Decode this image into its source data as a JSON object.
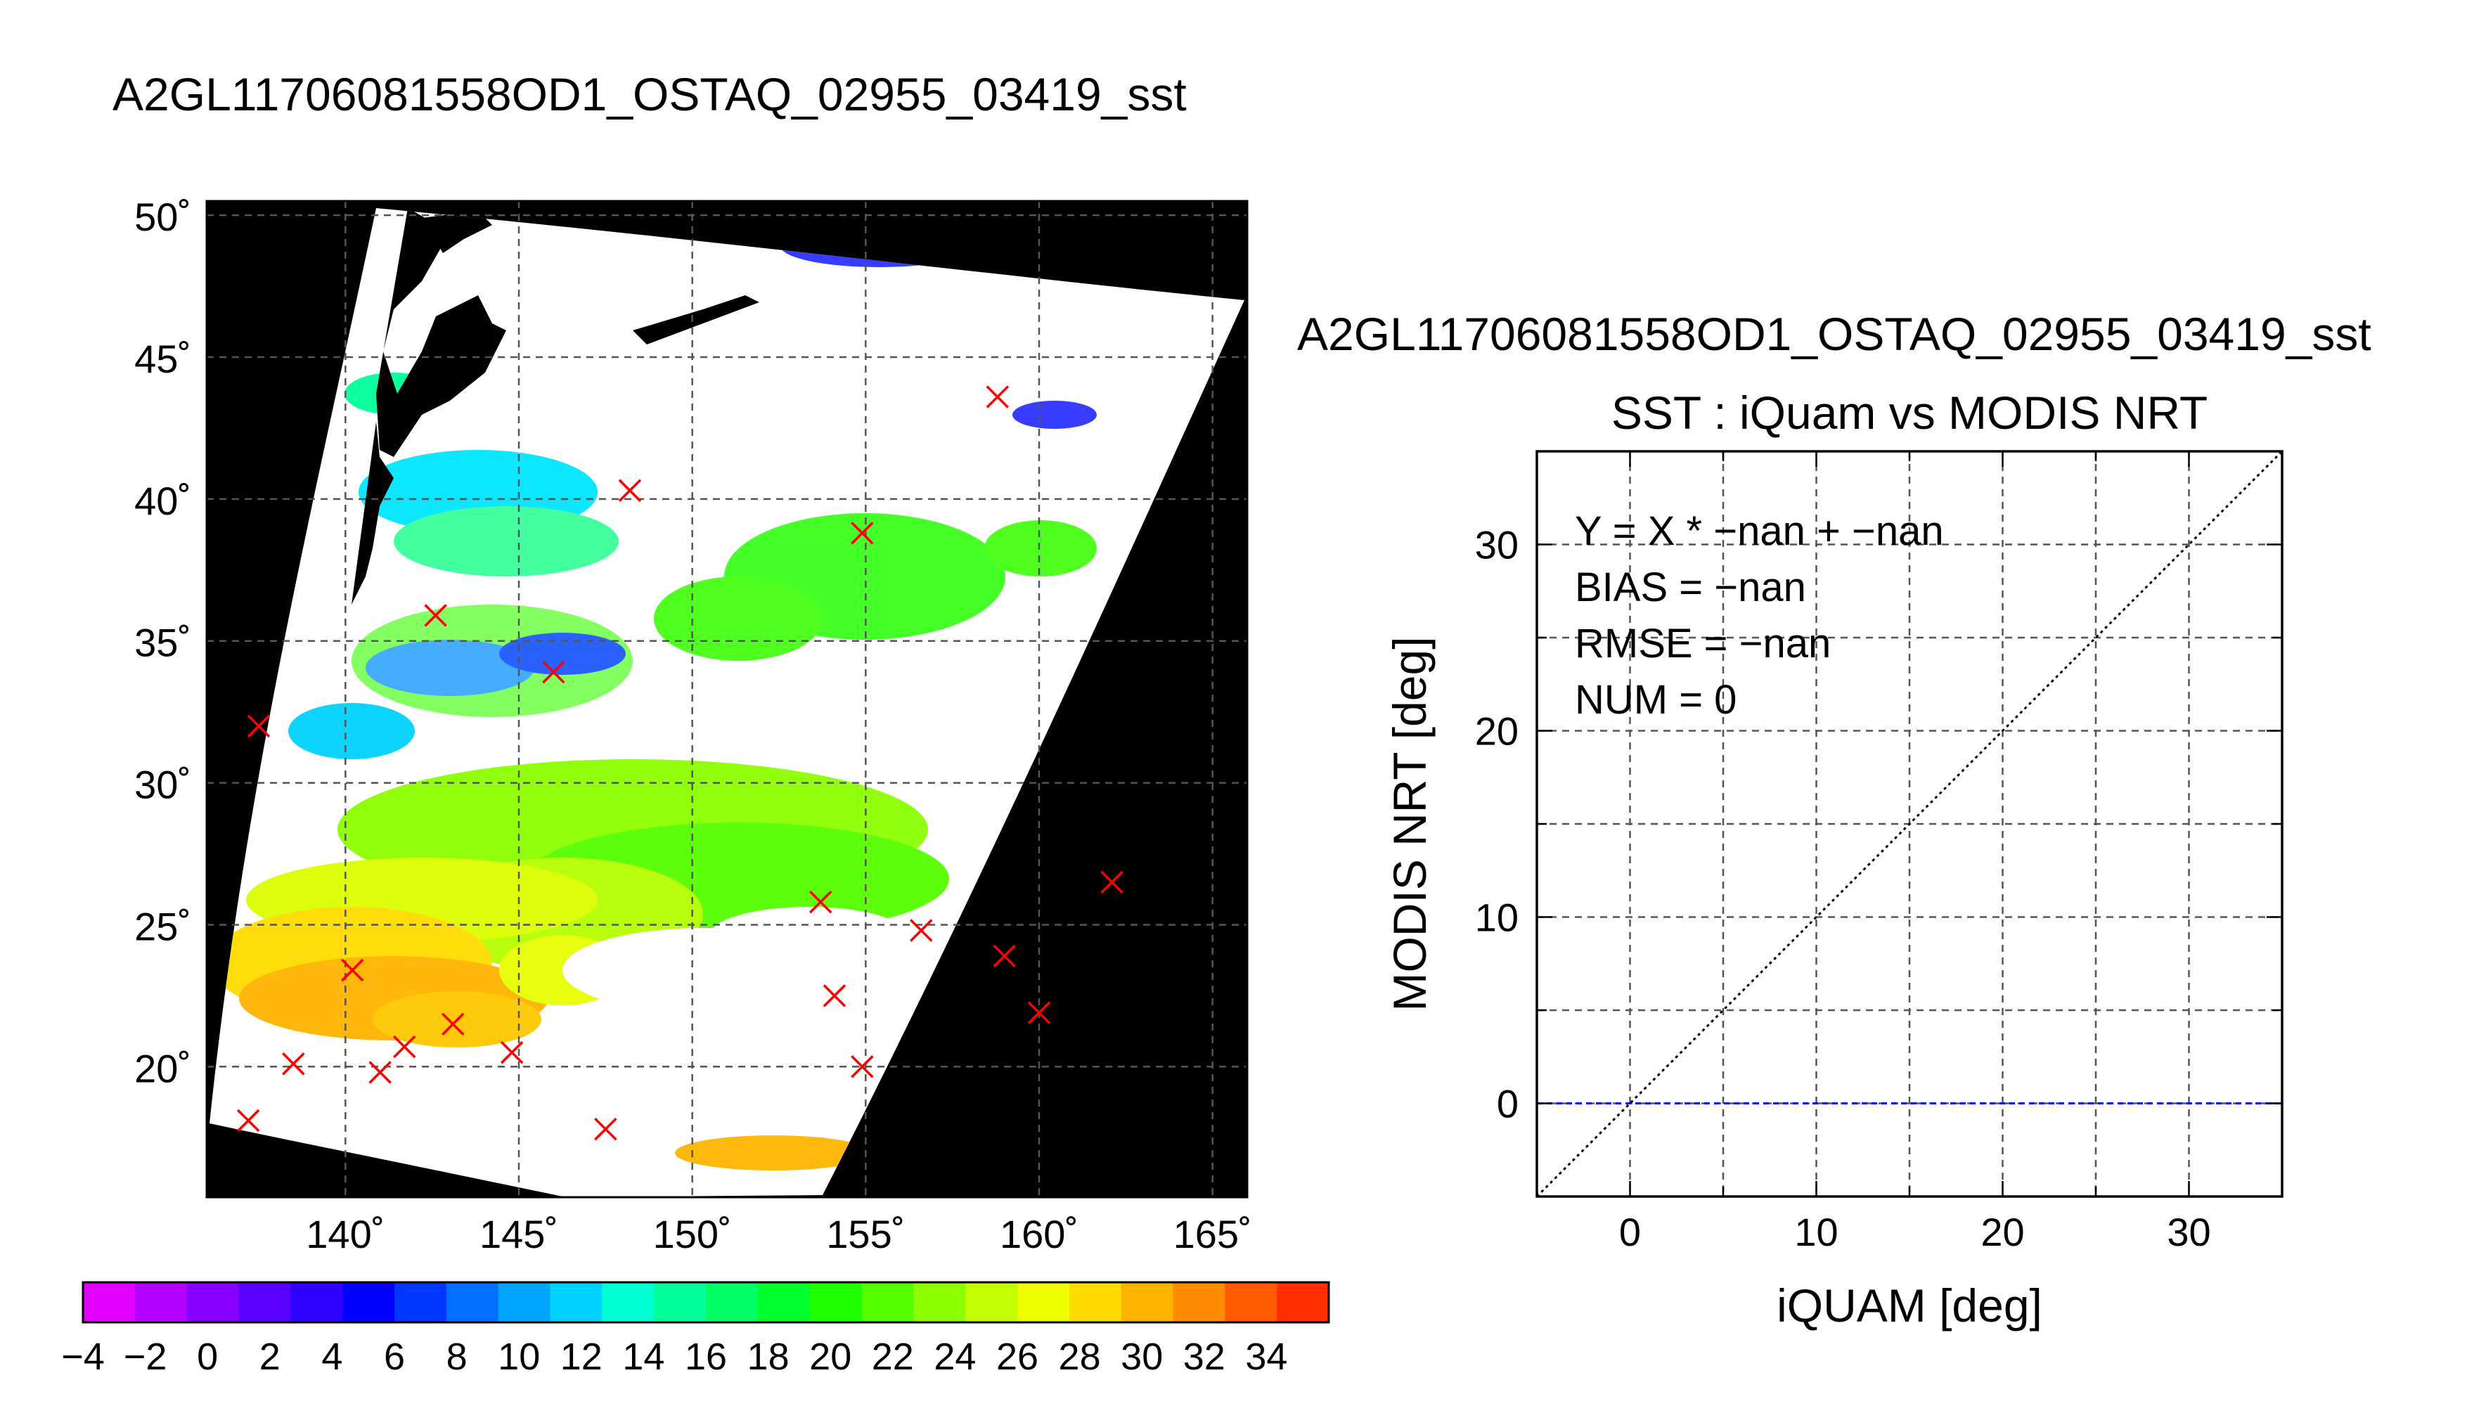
{
  "map": {
    "title": "A2GL11706081558OD1_OSTAQ_02955_03419_sst",
    "lat_ticks": [
      "50˚",
      "45˚",
      "40˚",
      "35˚",
      "30˚",
      "25˚",
      "20˚"
    ],
    "lon_ticks": [
      "140˚",
      "145˚",
      "150˚",
      "155˚",
      "160˚",
      "165˚"
    ],
    "colorbar_ticks": [
      "−4",
      "−2",
      "0",
      "2",
      "4",
      "6",
      "8",
      "10",
      "12",
      "14",
      "16",
      "18",
      "20",
      "22",
      "24",
      "26",
      "28",
      "30",
      "32",
      "34"
    ],
    "colorbar_colors": [
      "#e100ff",
      "#b400ff",
      "#8700ff",
      "#5a00ff",
      "#2d00ff",
      "#0000ff",
      "#0037ff",
      "#006eff",
      "#00a5ff",
      "#00d2ff",
      "#00ffd2",
      "#00ff9b",
      "#00ff64",
      "#00ff2d",
      "#1eff00",
      "#55ff00",
      "#8cff00",
      "#c3ff00",
      "#f0ff00",
      "#ffdc00",
      "#ffb400",
      "#ff8c00",
      "#ff5a00",
      "#ff2d00"
    ],
    "colorbar_range": [
      -4,
      36
    ],
    "lat_range": [
      15,
      50
    ],
    "lon_range": [
      136,
      166
    ],
    "match_points": [
      {
        "lon": 158.8,
        "lat": 43.6
      },
      {
        "lon": 148.2,
        "lat": 40.3
      },
      {
        "lon": 154.9,
        "lat": 38.8
      },
      {
        "lon": 142.6,
        "lat": 35.9
      },
      {
        "lon": 146.0,
        "lat": 33.9
      },
      {
        "lon": 137.5,
        "lat": 32.0
      },
      {
        "lon": 162.1,
        "lat": 26.5
      },
      {
        "lon": 153.7,
        "lat": 25.8
      },
      {
        "lon": 156.6,
        "lat": 24.8
      },
      {
        "lon": 159.0,
        "lat": 23.9
      },
      {
        "lon": 140.2,
        "lat": 23.4
      },
      {
        "lon": 154.1,
        "lat": 22.5
      },
      {
        "lon": 160.0,
        "lat": 21.9
      },
      {
        "lon": 143.1,
        "lat": 21.5
      },
      {
        "lon": 141.7,
        "lat": 20.7
      },
      {
        "lon": 144.8,
        "lat": 20.5
      },
      {
        "lon": 138.5,
        "lat": 20.1
      },
      {
        "lon": 154.9,
        "lat": 20.0
      },
      {
        "lon": 141.0,
        "lat": 19.8
      },
      {
        "lon": 137.2,
        "lat": 18.1
      },
      {
        "lon": 147.5,
        "lat": 17.8
      }
    ],
    "marker_color": "#ff0000"
  },
  "chart_data": {
    "type": "scatter",
    "title": "A2GL11706081558OD1_OSTAQ_02955_03419_sst",
    "subtitle": "SST : iQuam vs MODIS NRT",
    "xlabel": "iQUAM [deg]",
    "ylabel": "MODIS NRT [deg]",
    "xlim": [
      -5,
      35
    ],
    "ylim": [
      -5,
      35
    ],
    "x_ticks": [
      0,
      10,
      20,
      30
    ],
    "y_ticks": [
      0,
      10,
      20,
      30
    ],
    "grid": true,
    "annotations": [
      "Y = X * −nan + −nan",
      "BIAS = −nan",
      "RMSE = −nan",
      "NUM = 0"
    ],
    "series": [
      {
        "type": "line",
        "style": "dotted",
        "color": "#000000",
        "x": [
          -5,
          35
        ],
        "y": [
          -5,
          35
        ]
      },
      {
        "type": "line",
        "style": "dashed",
        "color": "#0000ff",
        "x": [
          -5,
          35
        ],
        "y": [
          0,
          0
        ]
      }
    ],
    "points": []
  }
}
